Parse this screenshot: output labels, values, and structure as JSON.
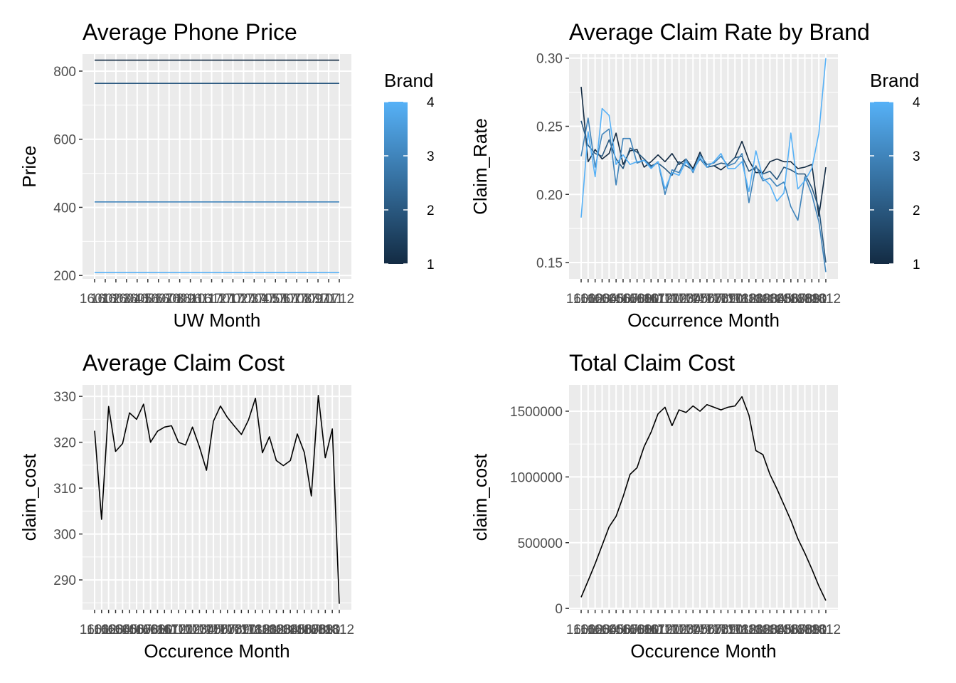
{
  "chart_data": [
    {
      "id": "p1",
      "type": "line",
      "title": "Average Phone Price",
      "xlabel": "UW Month",
      "ylabel": "Price",
      "ylim": [
        190,
        850
      ],
      "yticks": [
        200,
        400,
        600,
        800
      ],
      "xtick_labels": [
        "1601",
        "1602",
        "1603",
        "1604",
        "1605",
        "1606",
        "1607",
        "1608",
        "1609",
        "1610",
        "1611",
        "1612",
        "1701",
        "1702",
        "1703",
        "1704",
        "1705",
        "1706",
        "1707",
        "1708",
        "1709",
        "1710",
        "1711",
        "1712"
      ],
      "color_scale": {
        "low": "#132b43",
        "high": "#56b1f7",
        "min": 1,
        "max": 4
      },
      "legend": {
        "title": "Brand",
        "ticks": [
          1,
          2,
          3,
          4
        ],
        "position": "right"
      },
      "series": [
        {
          "brand": 1,
          "values": [
            832,
            832,
            832,
            832,
            832,
            832,
            832,
            832,
            832,
            832,
            832,
            832,
            832,
            832,
            832,
            832,
            832,
            832,
            832,
            832,
            832,
            832,
            832,
            832
          ]
        },
        {
          "brand": 2,
          "values": [
            764,
            764,
            764,
            764,
            764,
            764,
            764,
            764,
            764,
            764,
            764,
            764,
            764,
            764,
            764,
            764,
            764,
            764,
            764,
            764,
            764,
            764,
            764,
            764
          ]
        },
        {
          "brand": 3,
          "values": [
            416,
            416,
            416,
            416,
            416,
            416,
            416,
            416,
            416,
            416,
            416,
            416,
            416,
            416,
            416,
            416,
            416,
            416,
            416,
            416,
            416,
            416,
            416,
            416
          ]
        },
        {
          "brand": 4,
          "values": [
            209,
            209,
            209,
            209,
            209,
            209,
            209,
            209,
            209,
            209,
            209,
            209,
            209,
            209,
            209,
            209,
            209,
            209,
            209,
            209,
            209,
            209,
            209,
            209
          ]
        }
      ]
    },
    {
      "id": "p2",
      "type": "line",
      "title": "Average Claim Rate by Brand",
      "xlabel": "Occurrence Month",
      "ylabel": "Claim_Rate",
      "ylim": [
        0.138,
        0.303
      ],
      "yticks": [
        0.15,
        0.2,
        0.25,
        0.3
      ],
      "ytick_labels": [
        "0.15",
        "0.20",
        "0.25",
        "0.30"
      ],
      "xtick_labels": [
        "1601",
        "1602",
        "1603",
        "1604",
        "1605",
        "1606",
        "1607",
        "1608",
        "1609",
        "1610",
        "1611",
        "1612",
        "1701",
        "1702",
        "1703",
        "1704",
        "1705",
        "1706",
        "1707",
        "1708",
        "1709",
        "1710",
        "1711",
        "1712",
        "1801",
        "1802",
        "1803",
        "1804",
        "1805",
        "1806",
        "1807",
        "1808",
        "1809",
        "1810",
        "1811",
        "1812"
      ],
      "color_scale": {
        "low": "#132b43",
        "high": "#56b1f7",
        "min": 1,
        "max": 4
      },
      "legend": {
        "title": "Brand",
        "ticks": [
          1,
          2,
          3,
          4
        ],
        "position": "right"
      },
      "series": [
        {
          "brand": 1,
          "values": [
            0.279,
            0.224,
            0.233,
            0.226,
            0.23,
            0.245,
            0.222,
            0.232,
            0.233,
            0.22,
            0.224,
            0.229,
            0.224,
            0.23,
            0.222,
            0.226,
            0.219,
            0.231,
            0.22,
            0.221,
            0.218,
            0.222,
            0.227,
            0.239,
            0.225,
            0.216,
            0.216,
            0.224,
            0.226,
            0.224,
            0.224,
            0.219,
            0.22,
            0.222,
            0.184,
            0.22
          ]
        },
        {
          "brand": 2,
          "values": [
            0.254,
            0.236,
            0.23,
            0.228,
            0.24,
            0.226,
            0.219,
            0.234,
            0.231,
            0.226,
            0.221,
            0.223,
            0.219,
            0.214,
            0.224,
            0.221,
            0.218,
            0.226,
            0.22,
            0.221,
            0.223,
            0.222,
            0.227,
            0.228,
            0.217,
            0.22,
            0.215,
            0.217,
            0.211,
            0.22,
            0.218,
            0.215,
            0.215,
            0.205,
            0.19,
            0.15
          ]
        },
        {
          "brand": 3,
          "values": [
            0.228,
            0.256,
            0.22,
            0.244,
            0.248,
            0.207,
            0.241,
            0.241,
            0.223,
            0.225,
            0.22,
            0.224,
            0.2,
            0.218,
            0.216,
            0.226,
            0.216,
            0.229,
            0.222,
            0.223,
            0.228,
            0.221,
            0.223,
            0.23,
            0.194,
            0.221,
            0.21,
            0.212,
            0.206,
            0.209,
            0.191,
            0.181,
            0.213,
            0.2,
            0.18,
            0.143
          ]
        },
        {
          "brand": 4,
          "values": [
            0.183,
            0.246,
            0.213,
            0.263,
            0.258,
            0.222,
            0.229,
            0.222,
            0.224,
            0.225,
            0.219,
            0.224,
            0.204,
            0.216,
            0.214,
            0.224,
            0.217,
            0.227,
            0.22,
            0.224,
            0.23,
            0.219,
            0.219,
            0.224,
            0.202,
            0.232,
            0.212,
            0.207,
            0.195,
            0.201,
            0.245,
            0.204,
            0.21,
            0.219,
            0.245,
            0.3
          ]
        }
      ]
    },
    {
      "id": "p3",
      "type": "line",
      "title": "Average Claim Cost",
      "xlabel": "Occurence Month",
      "ylabel": "claim_cost",
      "ylim": [
        283.5,
        332.5
      ],
      "yticks": [
        290,
        300,
        310,
        320,
        330
      ],
      "xtick_labels": [
        "1601",
        "1602",
        "1603",
        "1604",
        "1605",
        "1606",
        "1607",
        "1608",
        "1609",
        "1610",
        "1611",
        "1612",
        "1701",
        "1702",
        "1703",
        "1704",
        "1705",
        "1706",
        "1707",
        "1708",
        "1709",
        "1710",
        "1711",
        "1712",
        "1801",
        "1802",
        "1803",
        "1804",
        "1805",
        "1806",
        "1807",
        "1808",
        "1809",
        "1810",
        "1811",
        "1812"
      ],
      "series": [
        {
          "name": "",
          "color": "#000000",
          "values": [
            322.5,
            303.2,
            327.8,
            318.0,
            319.7,
            326.4,
            325.0,
            328.3,
            320.0,
            322.4,
            323.3,
            323.6,
            320.0,
            319.4,
            323.3,
            319.0,
            313.9,
            324.6,
            327.9,
            325.4,
            323.5,
            321.7,
            324.8,
            329.6,
            317.7,
            321.2,
            316.0,
            314.9,
            316.0,
            321.8,
            317.8,
            308.3,
            330.2,
            316.6,
            322.9,
            284.8
          ]
        }
      ]
    },
    {
      "id": "p4",
      "type": "line",
      "title": "Total Claim Cost",
      "xlabel": "Occurence Month",
      "ylabel": "claim_cost",
      "ylim": [
        -10000,
        1700000
      ],
      "yticks": [
        0,
        500000,
        1000000,
        1500000
      ],
      "ytick_labels": [
        "0",
        "500000",
        "1000000",
        "1500000"
      ],
      "xtick_labels": [
        "1601",
        "1602",
        "1603",
        "1604",
        "1605",
        "1606",
        "1607",
        "1608",
        "1609",
        "1610",
        "1611",
        "1612",
        "1701",
        "1702",
        "1703",
        "1704",
        "1705",
        "1706",
        "1707",
        "1708",
        "1709",
        "1710",
        "1711",
        "1712",
        "1801",
        "1802",
        "1803",
        "1804",
        "1805",
        "1806",
        "1807",
        "1808",
        "1809",
        "1810",
        "1811",
        "1812"
      ],
      "series": [
        {
          "name": "",
          "color": "#000000",
          "values": [
            85000,
            210000,
            340000,
            480000,
            620000,
            700000,
            850000,
            1020000,
            1070000,
            1230000,
            1340000,
            1480000,
            1530000,
            1390000,
            1510000,
            1490000,
            1540000,
            1500000,
            1550000,
            1530000,
            1510000,
            1530000,
            1540000,
            1610000,
            1470000,
            1200000,
            1170000,
            1020000,
            910000,
            790000,
            670000,
            530000,
            420000,
            300000,
            170000,
            60000
          ]
        }
      ]
    }
  ]
}
